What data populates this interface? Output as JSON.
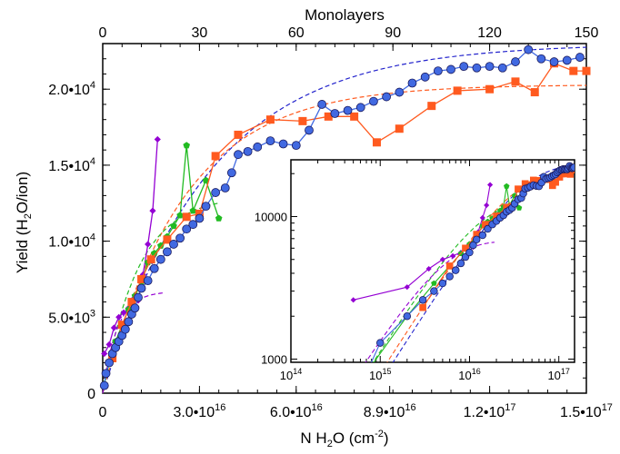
{
  "chart_data": {
    "type": "line",
    "title": "",
    "top_axis": {
      "label": "Monolayers",
      "ticks": [
        0,
        30,
        60,
        90,
        120,
        150
      ],
      "range": [
        0,
        150
      ]
    },
    "x_axis": {
      "label_parts": [
        "N H",
        "2",
        "O (cm",
        "-2",
        ")"
      ],
      "range": [
        0,
        1.5e+17
      ],
      "ticks": [
        0,
        3e+16,
        6e+16,
        8.9e+16,
        1.2e+17,
        1.5e+17
      ],
      "tick_labels": [
        {
          "mant": "0",
          "exp": ""
        },
        {
          "mant": "3.0•10",
          "exp": "16"
        },
        {
          "mant": "6.0•10",
          "exp": "16"
        },
        {
          "mant": "8.9•10",
          "exp": "16"
        },
        {
          "mant": "1.2•10",
          "exp": "17"
        },
        {
          "mant": "1.5•10",
          "exp": "17"
        }
      ]
    },
    "y_axis": {
      "label_parts": [
        "Yield (H",
        "2",
        "O/ion)"
      ],
      "range": [
        0,
        23000
      ],
      "ticks": [
        0,
        5000,
        10000,
        15000,
        20000
      ],
      "tick_labels": [
        {
          "mant": "0",
          "exp": ""
        },
        {
          "mant": "5.0•10",
          "exp": "3"
        },
        {
          "mant": "1.0•10",
          "exp": "4"
        },
        {
          "mant": "1.5•10",
          "exp": "4"
        },
        {
          "mant": "2.0•10",
          "exp": "4"
        }
      ]
    },
    "series": [
      {
        "color": "#4169e1",
        "marker": "circle",
        "x": [
          500000000000000.0,
          1000000000000000.0,
          2000000000000000.0,
          3000000000000000.0,
          4000000000000000.0,
          5000000000000000.0,
          6000000000000000.0,
          7000000000000000.0,
          8000000000000000.0,
          9000000000000000.0,
          1e+16,
          1.1e+16,
          1.2e+16,
          1.4e+16,
          1.6e+16,
          1.8e+16,
          2e+16,
          2.2e+16,
          2.4e+16,
          2.6e+16,
          2.8e+16,
          3e+16,
          3.2e+16,
          3.5e+16,
          3.8e+16,
          4e+16,
          4.2e+16,
          4.5e+16,
          4.8e+16,
          5.2e+16,
          5.6e+16,
          6e+16,
          6.4e+16,
          6.8e+16,
          7.2e+16,
          7.6e+16,
          8e+16,
          8.4e+16,
          8.8e+16,
          9.2e+16,
          9.6e+16,
          1e+17,
          1.04e+17,
          1.08e+17,
          1.12e+17,
          1.16e+17,
          1.2e+17,
          1.24e+17,
          1.28e+17,
          1.32e+17,
          1.36e+17,
          1.4e+17,
          1.44e+17,
          1.48e+17
        ],
        "y": [
          500,
          1300,
          2000,
          2600,
          3000,
          3400,
          3800,
          4200,
          4700,
          5200,
          5600,
          6300,
          6900,
          7400,
          8200,
          8800,
          9300,
          9800,
          10200,
          10800,
          11100,
          11500,
          12300,
          13200,
          13500,
          14500,
          15700,
          15900,
          16200,
          16600,
          16400,
          16300,
          17300,
          19000,
          18400,
          18600,
          18800,
          19200,
          19500,
          19800,
          20400,
          20800,
          21200,
          21300,
          21500,
          21400,
          21500,
          21400,
          21800,
          22600,
          22000,
          21800,
          21900,
          22100
        ]
      },
      {
        "color": "#ff5a1f",
        "marker": "square",
        "x": [
          3000000000000000.0,
          6000000000000000.0,
          9000000000000000.0,
          1.2e+16,
          1.5e+16,
          2e+16,
          2.6e+16,
          3e+16,
          3.5e+16,
          4.2e+16,
          5.2e+16,
          6.2e+16,
          7e+16,
          7.8e+16,
          8.5e+16,
          9.2e+16,
          1.02e+17,
          1.1e+17,
          1.2e+17,
          1.28e+17,
          1.34e+17,
          1.4e+17,
          1.46e+17,
          1.5e+17
        ],
        "y": [
          2300,
          4500,
          6000,
          7500,
          8800,
          10100,
          11600,
          11800,
          15600,
          17000,
          18000,
          17900,
          18200,
          18200,
          16500,
          17400,
          18900,
          19900,
          20000,
          20500,
          19800,
          21700,
          21200,
          21200
        ]
      },
      {
        "color": "#22bb22",
        "marker": "pentagon",
        "x": [
          500000000000000.0,
          2000000000000000.0,
          4000000000000000.0,
          6000000000000000.0,
          8000000000000000.0,
          1e+16,
          1.2e+16,
          1.4e+16,
          1.6e+16,
          1.8e+16,
          2e+16,
          2.2e+16,
          2.4e+16,
          2.6e+16,
          2.8e+16,
          3.2e+16,
          3.6e+16
        ],
        "y": [
          600,
          2000,
          3400,
          4500,
          5500,
          6400,
          7300,
          8600,
          9200,
          9700,
          10300,
          11000,
          11700,
          16300,
          12000,
          14000,
          11500
        ]
      },
      {
        "color": "#9400d3",
        "marker": "diamond",
        "x": [
          500000000000000.0,
          2000000000000000.0,
          3500000000000000.0,
          5000000000000000.0,
          6500000000000000.0,
          8000000000000000.0,
          9500000000000000.0,
          1.1e+16,
          1.25e+16,
          1.4e+16,
          1.55e+16,
          1.7e+16
        ],
        "y": [
          2600,
          3200,
          4300,
          5000,
          5300,
          5600,
          6200,
          6100,
          7800,
          9800,
          12000,
          16700
        ]
      }
    ],
    "fits": [
      {
        "color": "#2222cc",
        "a": 23000,
        "tau": 3.3e+16
      },
      {
        "color": "#ff5a1f",
        "a": 20300,
        "tau": 2.5e+16
      },
      {
        "color": "#22bb22",
        "a": 13000,
        "tau": 1.1e+16,
        "xmax": 3.6e+16
      },
      {
        "color": "#9400d3",
        "a": 6700,
        "tau": 4500000000000000.0,
        "xmax": 1.9e+16
      }
    ],
    "inset": {
      "x_scale": "log",
      "y_scale": "log",
      "x_range": [
        100000000000000.0,
        1.5e+17
      ],
      "y_range": [
        950,
        25000
      ],
      "x_tick_labels": [
        {
          "mant": "10",
          "exp": "14",
          "v": 100000000000000.0
        },
        {
          "mant": "10",
          "exp": "15",
          "v": 1000000000000000.0
        },
        {
          "mant": "10",
          "exp": "16",
          "v": 1e+16
        },
        {
          "mant": "10",
          "exp": "17",
          "v": 1e+17
        }
      ],
      "y_tick_labels": [
        {
          "text": "1000",
          "v": 1000
        },
        {
          "text": "10000",
          "v": 10000
        }
      ]
    }
  }
}
